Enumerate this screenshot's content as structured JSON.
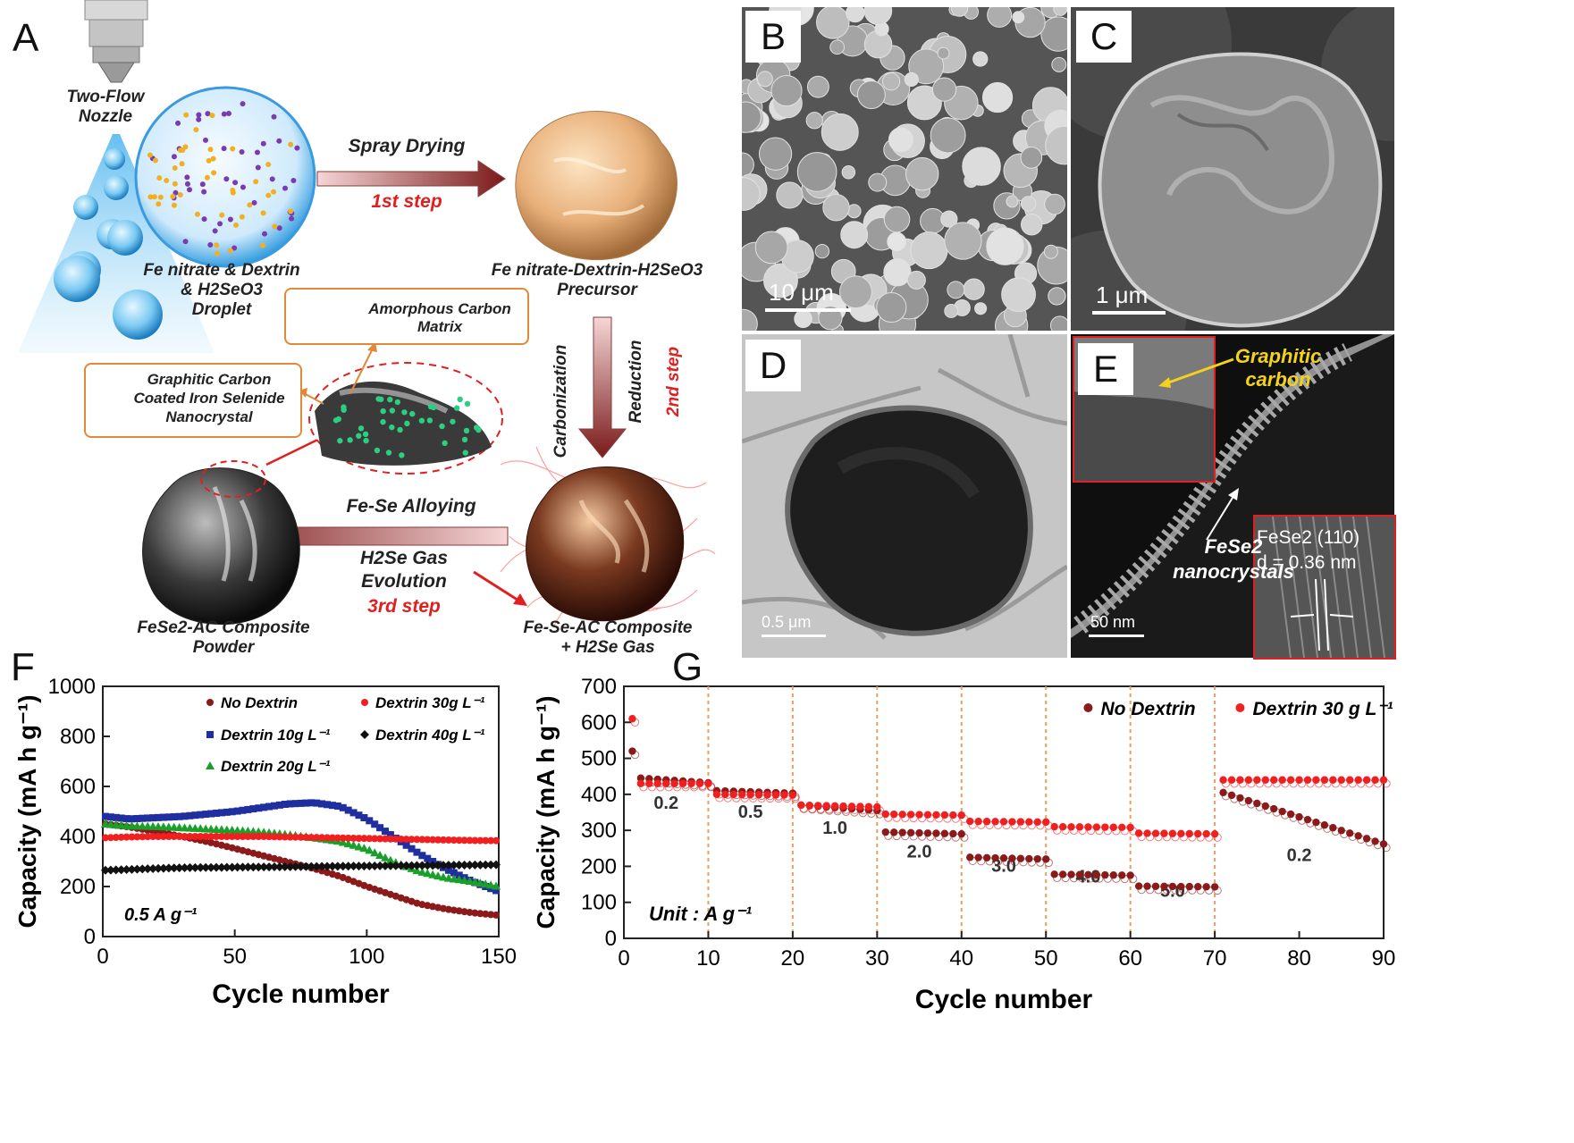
{
  "panel_labels": {
    "A": "A",
    "B": "B",
    "C": "C",
    "D": "D",
    "E": "E",
    "F": "F",
    "G": "G"
  },
  "schematic": {
    "nozzle": "Two-Flow\nNozzle",
    "droplet": "Fe nitrate & Dextrin\n& H2SeO3\nDroplet",
    "step1_top": "Spray Drying",
    "step1_bottom": "1st step",
    "precursor": "Fe nitrate-Dextrin-H2SeO3\nPrecursor",
    "carbonization": "Carbonization",
    "reduction": "Reduction",
    "step2": "2nd step",
    "amorphous": "Amorphous Carbon\nMatrix",
    "graphitic_box": "Graphitic Carbon\nCoated Iron Selenide\nNanocrystal",
    "alloying": "Fe-Se Alloying",
    "h2se_gas": "H2Se Gas\nEvolution",
    "step3": "3rd step",
    "fese_ac": "Fe-Se-AC Composite\n+ H2Se Gas",
    "fese2_ac": "FeSe2-AC Composite\nPowder"
  },
  "micrographs": {
    "B_scale": "10 μm",
    "C_scale": "1 μm",
    "D_scale": "0.5 μm",
    "E_scale": "50 nm",
    "E_graphitic": "Graphitic\ncarbon",
    "E_fese2": "FeSe2\nnanocrystals",
    "E_inset2": "FeSe2 (110)\nd = 0.36 nm"
  },
  "colors": {
    "no_dextrin": "#8b1a1a",
    "dextrin10": "#1f2fa0",
    "dextrin20": "#1aa02a",
    "dextrin30": "#f02020",
    "dextrin40": "#111111",
    "guide": "#e8a060"
  },
  "chart_data": [
    {
      "id": "F",
      "type": "scatter",
      "title": "",
      "xlabel": "Cycle number",
      "ylabel": "Capacity (mA h g⁻¹)",
      "xlim": [
        0,
        150
      ],
      "ylim": [
        0,
        1000
      ],
      "xticks": [
        0,
        50,
        100,
        150
      ],
      "yticks": [
        0,
        200,
        400,
        600,
        800,
        1000
      ],
      "annotation": "0.5 A g⁻¹",
      "legend": [
        "No Dextrin",
        "Dextrin 10g L⁻¹",
        "Dextrin 20g L⁻¹",
        "Dextrin 30g L⁻¹",
        "Dextrin 40g L⁻¹"
      ],
      "series": [
        {
          "name": "No Dextrin",
          "x": [
            1,
            10,
            20,
            30,
            40,
            50,
            60,
            70,
            80,
            90,
            100,
            110,
            120,
            130,
            140,
            150
          ],
          "y": [
            450,
            438,
            420,
            400,
            378,
            352,
            325,
            298,
            272,
            240,
            200,
            165,
            130,
            110,
            95,
            85
          ]
        },
        {
          "name": "Dextrin 10g L⁻¹",
          "x": [
            1,
            10,
            20,
            30,
            40,
            50,
            60,
            70,
            80,
            90,
            100,
            110,
            120,
            130,
            140,
            150
          ],
          "y": [
            480,
            470,
            475,
            480,
            490,
            500,
            515,
            530,
            535,
            520,
            470,
            400,
            330,
            270,
            220,
            180
          ]
        },
        {
          "name": "Dextrin 20g L⁻¹",
          "x": [
            1,
            10,
            20,
            30,
            40,
            50,
            60,
            70,
            80,
            90,
            100,
            110,
            120,
            130,
            140,
            150
          ],
          "y": [
            450,
            442,
            440,
            435,
            430,
            425,
            418,
            408,
            395,
            380,
            350,
            300,
            260,
            235,
            220,
            200
          ]
        },
        {
          "name": "Dextrin 30g L⁻¹",
          "x": [
            1,
            10,
            20,
            30,
            40,
            50,
            60,
            70,
            80,
            90,
            100,
            110,
            120,
            130,
            140,
            150
          ],
          "y": [
            395,
            398,
            400,
            400,
            400,
            400,
            400,
            398,
            396,
            394,
            392,
            390,
            388,
            386,
            384,
            383
          ]
        },
        {
          "name": "Dextrin 40g L⁻¹",
          "x": [
            1,
            10,
            20,
            30,
            40,
            50,
            60,
            70,
            80,
            90,
            100,
            110,
            120,
            130,
            140,
            150
          ],
          "y": [
            265,
            268,
            272,
            275,
            276,
            277,
            278,
            279,
            280,
            281,
            282,
            283,
            284,
            285,
            286,
            287
          ]
        }
      ]
    },
    {
      "id": "G",
      "type": "scatter",
      "title": "",
      "xlabel": "Cycle number",
      "ylabel": "Capacity (mA h g⁻¹)",
      "xlim": [
        0,
        90
      ],
      "ylim": [
        0,
        700
      ],
      "xticks": [
        0,
        10,
        20,
        30,
        40,
        50,
        60,
        70,
        80,
        90
      ],
      "yticks": [
        0,
        100,
        200,
        300,
        400,
        500,
        600,
        700
      ],
      "annotation": "Unit : A g⁻¹",
      "rate_labels": [
        {
          "x": 5,
          "y": 360,
          "text": "0.2"
        },
        {
          "x": 15,
          "y": 335,
          "text": "0.5"
        },
        {
          "x": 25,
          "y": 290,
          "text": "1.0"
        },
        {
          "x": 35,
          "y": 225,
          "text": "2.0"
        },
        {
          "x": 45,
          "y": 185,
          "text": "3.0"
        },
        {
          "x": 55,
          "y": 155,
          "text": "4.0"
        },
        {
          "x": 65,
          "y": 115,
          "text": "5.0"
        },
        {
          "x": 80,
          "y": 215,
          "text": "0.2"
        }
      ],
      "guides": [
        10,
        20,
        30,
        40,
        50,
        60,
        70
      ],
      "legend": [
        "No Dextrin",
        "Dextrin 30 g L⁻¹"
      ],
      "series": [
        {
          "name": "No Dextrin",
          "segments": [
            {
              "x0": 1,
              "x1": 1,
              "y0": 520,
              "y1": 520
            },
            {
              "x0": 2,
              "x1": 10,
              "y0": 445,
              "y1": 432
            },
            {
              "x0": 11,
              "x1": 20,
              "y0": 410,
              "y1": 403
            },
            {
              "x0": 21,
              "x1": 30,
              "y0": 370,
              "y1": 355
            },
            {
              "x0": 31,
              "x1": 40,
              "y0": 295,
              "y1": 290
            },
            {
              "x0": 41,
              "x1": 50,
              "y0": 225,
              "y1": 220
            },
            {
              "x0": 51,
              "x1": 60,
              "y0": 178,
              "y1": 175
            },
            {
              "x0": 61,
              "x1": 70,
              "y0": 145,
              "y1": 143
            },
            {
              "x0": 71,
              "x1": 90,
              "y0": 405,
              "y1": 262
            }
          ]
        },
        {
          "name": "Dextrin 30 g L⁻¹",
          "segments": [
            {
              "x0": 1,
              "x1": 1,
              "y0": 610,
              "y1": 610
            },
            {
              "x0": 2,
              "x1": 10,
              "y0": 430,
              "y1": 430
            },
            {
              "x0": 11,
              "x1": 20,
              "y0": 400,
              "y1": 398
            },
            {
              "x0": 21,
              "x1": 30,
              "y0": 370,
              "y1": 365
            },
            {
              "x0": 31,
              "x1": 40,
              "y0": 345,
              "y1": 342
            },
            {
              "x0": 41,
              "x1": 50,
              "y0": 325,
              "y1": 323
            },
            {
              "x0": 51,
              "x1": 60,
              "y0": 310,
              "y1": 308
            },
            {
              "x0": 61,
              "x1": 70,
              "y0": 292,
              "y1": 290
            },
            {
              "x0": 71,
              "x1": 90,
              "y0": 440,
              "y1": 440
            }
          ]
        }
      ]
    }
  ]
}
